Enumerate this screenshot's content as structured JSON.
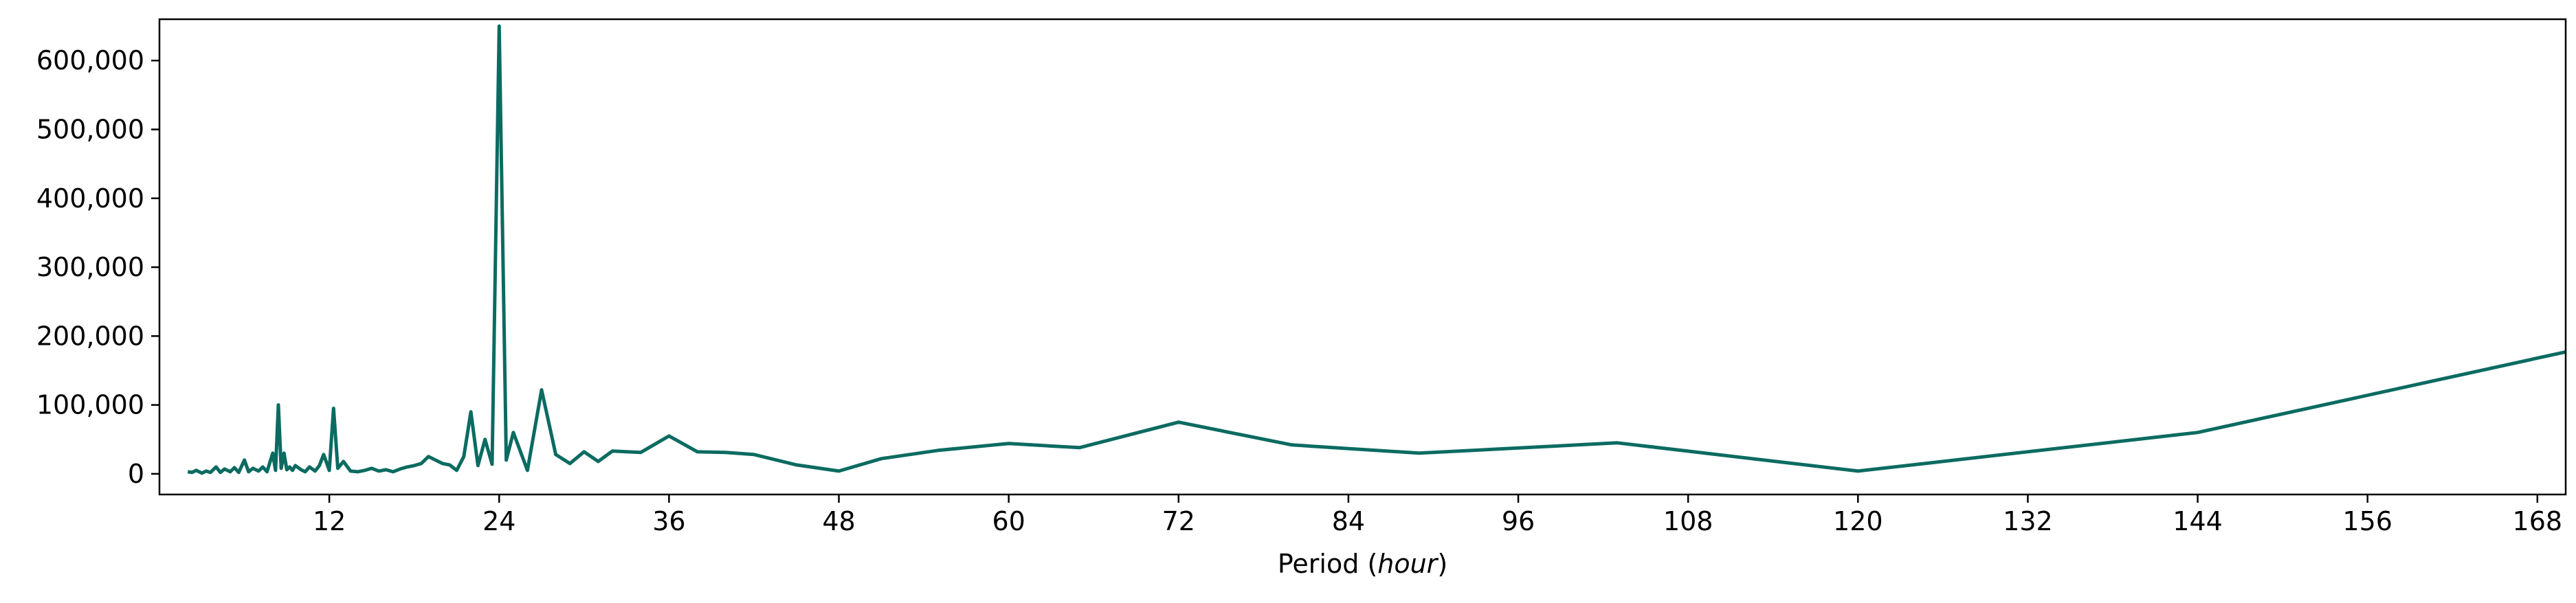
{
  "chart_data": {
    "type": "line",
    "title": "",
    "xlabel": "Period",
    "xlabel_unit": "hour",
    "ylabel": "",
    "xlim": [
      0,
      170
    ],
    "ylim": [
      -30000,
      660000
    ],
    "xticks": [
      12,
      24,
      36,
      48,
      60,
      72,
      84,
      96,
      108,
      120,
      132,
      144,
      156,
      168
    ],
    "yticks": [
      0,
      100000,
      200000,
      300000,
      400000,
      500000,
      600000
    ],
    "ytick_labels": [
      "0",
      "100,000",
      "200,000",
      "300,000",
      "400,000",
      "500,000",
      "600,000"
    ],
    "grid": false,
    "legend": "none",
    "colors": {
      "line": "#0b6b61"
    },
    "series": [
      {
        "x": [
          2,
          2.3,
          2.6,
          3,
          3.3,
          3.6,
          4,
          4.3,
          4.6,
          5,
          5.3,
          5.6,
          6,
          6.3,
          6.6,
          7,
          7.3,
          7.6,
          8,
          8.2,
          8.4,
          8.6,
          8.8,
          9,
          9.2,
          9.4,
          9.6,
          10,
          10.3,
          10.6,
          11,
          11.3,
          11.6,
          12,
          12.3,
          12.6,
          13,
          13.5,
          14,
          14.5,
          15,
          15.5,
          16,
          16.5,
          17,
          17.5,
          18,
          18.5,
          19,
          20,
          20.5,
          21,
          21.5,
          22,
          22.5,
          23,
          23.5,
          24,
          24.5,
          25,
          26,
          27,
          28,
          29,
          30,
          31,
          32,
          34,
          36,
          38,
          40,
          42,
          45,
          48,
          51,
          55,
          60,
          65,
          72,
          80,
          89,
          103,
          120,
          144,
          170
        ],
        "y": [
          3000,
          2000,
          5000,
          1000,
          4000,
          2000,
          10000,
          2000,
          7000,
          3000,
          9000,
          2000,
          20000,
          3000,
          8000,
          4000,
          10000,
          3000,
          30000,
          5000,
          100000,
          8000,
          30000,
          6000,
          10000,
          5000,
          12000,
          6000,
          3000,
          10000,
          4000,
          12000,
          28000,
          5000,
          95000,
          8000,
          18000,
          4000,
          3000,
          5000,
          8000,
          4000,
          6000,
          3000,
          7000,
          10000,
          12000,
          15000,
          25000,
          15000,
          13000,
          5000,
          25000,
          90000,
          12000,
          50000,
          14000,
          650000,
          20000,
          60000,
          5000,
          122000,
          28000,
          15000,
          32000,
          18000,
          33000,
          31000,
          55000,
          32000,
          31000,
          28000,
          13000,
          4000,
          22000,
          34000,
          44000,
          38000,
          75000,
          42000,
          30000,
          45000,
          4000,
          60000,
          177000
        ]
      }
    ]
  }
}
